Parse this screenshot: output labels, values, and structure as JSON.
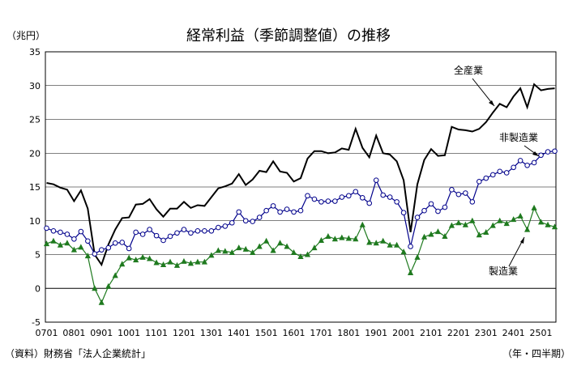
{
  "chart_data": {
    "type": "line",
    "title": "経常利益（季節調整値）の推移",
    "y_unit": "（兆円）",
    "x_unit": "（年・四半期）",
    "source": "（資料）財務省「法人企業統計」",
    "ylim": [
      -5,
      35
    ],
    "yticks": [
      -5,
      0,
      5,
      10,
      15,
      20,
      25,
      30,
      35
    ],
    "xticks": [
      "0701",
      "0801",
      "0901",
      "1001",
      "1101",
      "1201",
      "1301",
      "1401",
      "1501",
      "1601",
      "1701",
      "1801",
      "1901",
      "2001",
      "2101",
      "2201",
      "2301",
      "2401",
      "2501"
    ],
    "grid": "horizontal",
    "x": [
      "0701",
      "0702",
      "0703",
      "0704",
      "0801",
      "0802",
      "0803",
      "0804",
      "0901",
      "0902",
      "0903",
      "0904",
      "1001",
      "1002",
      "1003",
      "1004",
      "1101",
      "1102",
      "1103",
      "1104",
      "1201",
      "1202",
      "1203",
      "1204",
      "1301",
      "1302",
      "1303",
      "1304",
      "1401",
      "1402",
      "1403",
      "1404",
      "1501",
      "1502",
      "1503",
      "1504",
      "1601",
      "1602",
      "1603",
      "1604",
      "1701",
      "1702",
      "1703",
      "1704",
      "1801",
      "1802",
      "1803",
      "1804",
      "1901",
      "1902",
      "1903",
      "1904",
      "2001",
      "2002",
      "2003",
      "2004",
      "2101",
      "2102",
      "2103",
      "2104",
      "2201",
      "2202",
      "2203",
      "2204",
      "2301",
      "2302",
      "2303",
      "2304",
      "2401",
      "2402",
      "2403",
      "2404",
      "2501",
      "2502",
      "2503"
    ],
    "series": [
      {
        "name": "全産業",
        "color": "#000000",
        "marker": "none",
        "values": [
          15.6,
          15.4,
          14.9,
          14.6,
          12.9,
          14.5,
          11.8,
          5.0,
          3.5,
          6.5,
          8.7,
          10.4,
          10.5,
          12.4,
          12.5,
          13.2,
          11.7,
          10.6,
          11.8,
          11.8,
          12.8,
          11.9,
          12.3,
          12.2,
          13.5,
          14.8,
          15.1,
          15.5,
          16.9,
          15.3,
          16.1,
          17.4,
          17.2,
          18.8,
          17.3,
          17.1,
          15.8,
          16.3,
          19.2,
          20.3,
          20.3,
          20.0,
          20.1,
          20.7,
          20.5,
          23.6,
          20.8,
          19.4,
          22.6,
          20.0,
          19.8,
          18.8,
          16.0,
          8.3,
          15.4,
          19.0,
          20.6,
          19.6,
          19.7,
          23.9,
          23.5,
          23.4,
          23.2,
          23.6,
          24.6,
          26.0,
          27.3,
          26.8,
          28.4,
          29.6,
          26.8,
          30.2,
          29.3,
          29.5,
          29.6
        ]
      },
      {
        "name": "非製造業",
        "color": "#00008b",
        "marker": "circle",
        "values": [
          8.9,
          8.5,
          8.3,
          8.0,
          7.3,
          8.4,
          7.0,
          5.1,
          5.7,
          6.0,
          6.7,
          6.8,
          5.9,
          8.3,
          8.0,
          8.7,
          7.8,
          7.1,
          7.7,
          8.2,
          8.7,
          8.2,
          8.5,
          8.5,
          8.5,
          9.0,
          9.2,
          9.7,
          11.3,
          10.0,
          9.9,
          10.5,
          11.5,
          12.2,
          11.3,
          11.7,
          11.3,
          11.5,
          13.7,
          13.2,
          12.8,
          12.9,
          12.9,
          13.5,
          13.7,
          14.3,
          13.4,
          12.6,
          16.0,
          13.8,
          13.5,
          12.8,
          11.2,
          6.2,
          10.5,
          11.5,
          12.5,
          11.4,
          12.0,
          14.6,
          13.9,
          14.1,
          12.8,
          15.8,
          16.3,
          16.8,
          17.3,
          17.1,
          17.9,
          18.9,
          18.2,
          18.6,
          19.7,
          20.2,
          20.3
        ]
      },
      {
        "name": "製造業",
        "color": "#1f7a1f",
        "marker": "triangle",
        "values": [
          6.6,
          7.0,
          6.4,
          6.7,
          5.7,
          6.1,
          4.8,
          0.0,
          -2.1,
          0.3,
          1.9,
          3.6,
          4.5,
          4.2,
          4.6,
          4.4,
          3.8,
          3.5,
          3.9,
          3.4,
          4.0,
          3.7,
          3.9,
          3.9,
          4.9,
          5.6,
          5.5,
          5.3,
          6.0,
          5.8,
          5.3,
          6.2,
          7.0,
          5.6,
          6.7,
          6.2,
          5.3,
          4.7,
          5.0,
          6.0,
          7.1,
          7.7,
          7.3,
          7.5,
          7.4,
          7.3,
          9.4,
          6.8,
          6.7,
          7.0,
          6.4,
          6.4,
          5.4,
          2.3,
          4.6,
          7.6,
          8.0,
          8.4,
          7.7,
          9.3,
          9.7,
          9.4,
          10.0,
          7.9,
          8.3,
          9.3,
          10.0,
          9.6,
          10.2,
          10.7,
          8.7,
          11.9,
          9.8,
          9.4,
          9.1
        ]
      }
    ]
  }
}
